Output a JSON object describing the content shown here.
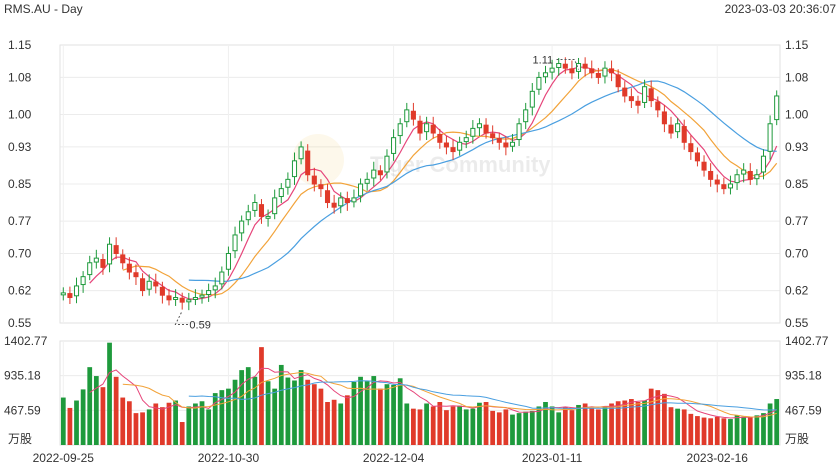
{
  "header": {
    "symbol": "RMS.AU - Day",
    "datetime": "2023-03-03 20:36:07"
  },
  "watermark": "Tiger Community",
  "chart_data": {
    "type": "candlestick",
    "price_axis": {
      "ticks": [
        "1.15",
        "1.08",
        "1.00",
        "0.93",
        "0.85",
        "0.77",
        "0.70",
        "0.62",
        "0.55"
      ],
      "ylim": [
        0.55,
        1.15
      ]
    },
    "volume_axis": {
      "ticks": [
        "1402.77",
        "935.18",
        "467.59"
      ],
      "unit": "万股",
      "ylim": [
        0,
        1402.77
      ]
    },
    "x_labels": [
      {
        "i": 0,
        "label": "2022-09-25"
      },
      {
        "i": 25,
        "label": "2022-10-30"
      },
      {
        "i": 50,
        "label": "2022-12-04"
      },
      {
        "i": 74,
        "label": "2023-01-11"
      },
      {
        "i": 99,
        "label": "2023-02-16"
      }
    ],
    "annotations": [
      {
        "i": 20,
        "price": 0.59,
        "label": "0.59"
      },
      {
        "i": 78,
        "price": 1.11,
        "label": "1.11"
      }
    ],
    "close": [
      0.615,
      0.605,
      0.63,
      0.65,
      0.68,
      0.69,
      0.67,
      0.72,
      0.7,
      0.68,
      0.66,
      0.65,
      0.62,
      0.64,
      0.63,
      0.61,
      0.6,
      0.605,
      0.595,
      0.6,
      0.605,
      0.61,
      0.62,
      0.63,
      0.66,
      0.7,
      0.74,
      0.77,
      0.79,
      0.81,
      0.78,
      0.78,
      0.82,
      0.84,
      0.86,
      0.9,
      0.93,
      0.87,
      0.85,
      0.84,
      0.81,
      0.8,
      0.82,
      0.81,
      0.82,
      0.85,
      0.86,
      0.88,
      0.87,
      0.91,
      0.95,
      0.98,
      1.01,
      0.99,
      0.96,
      0.98,
      0.96,
      0.94,
      0.93,
      0.92,
      0.94,
      0.95,
      0.97,
      0.98,
      0.96,
      0.95,
      0.94,
      0.93,
      0.94,
      0.98,
      1.01,
      1.05,
      1.08,
      1.09,
      1.1,
      1.11,
      1.1,
      1.09,
      1.11,
      1.1,
      1.09,
      1.08,
      1.1,
      1.09,
      1.06,
      1.04,
      1.03,
      1.02,
      1.06,
      1.03,
      1.01,
      0.98,
      0.96,
      0.98,
      0.94,
      0.92,
      0.9,
      0.88,
      0.86,
      0.85,
      0.84,
      0.85,
      0.87,
      0.88,
      0.86,
      0.87,
      0.91,
      0.98,
      1.04
    ],
    "volume": [
      640,
      500,
      600,
      750,
      1050,
      930,
      780,
      1380,
      920,
      640,
      590,
      430,
      440,
      480,
      560,
      510,
      570,
      600,
      310,
      520,
      560,
      590,
      480,
      700,
      740,
      760,
      880,
      1010,
      1050,
      920,
      1320,
      860,
      760,
      1080,
      910,
      870,
      1010,
      880,
      820,
      760,
      580,
      610,
      560,
      670,
      850,
      920,
      860,
      930,
      760,
      820,
      810,
      900,
      560,
      490,
      480,
      560,
      520,
      580,
      470,
      520,
      530,
      480,
      490,
      570,
      580,
      460,
      440,
      480,
      410,
      430,
      450,
      460,
      520,
      580,
      520,
      440,
      510,
      470,
      540,
      560,
      500,
      480,
      520,
      560,
      590,
      600,
      620,
      580,
      600,
      760,
      740,
      690,
      510,
      490,
      480,
      420,
      390,
      370,
      360,
      380,
      360,
      350,
      400,
      380,
      380,
      400,
      430,
      560,
      620
    ],
    "moving_averages": [
      {
        "period": 5,
        "color": "#e6457a"
      },
      {
        "period": 10,
        "color": "#f2a33a"
      },
      {
        "period": 20,
        "color": "#4a9fe0"
      }
    ],
    "up_color": "#1e9a3c",
    "down_color": "#e03a2a"
  }
}
